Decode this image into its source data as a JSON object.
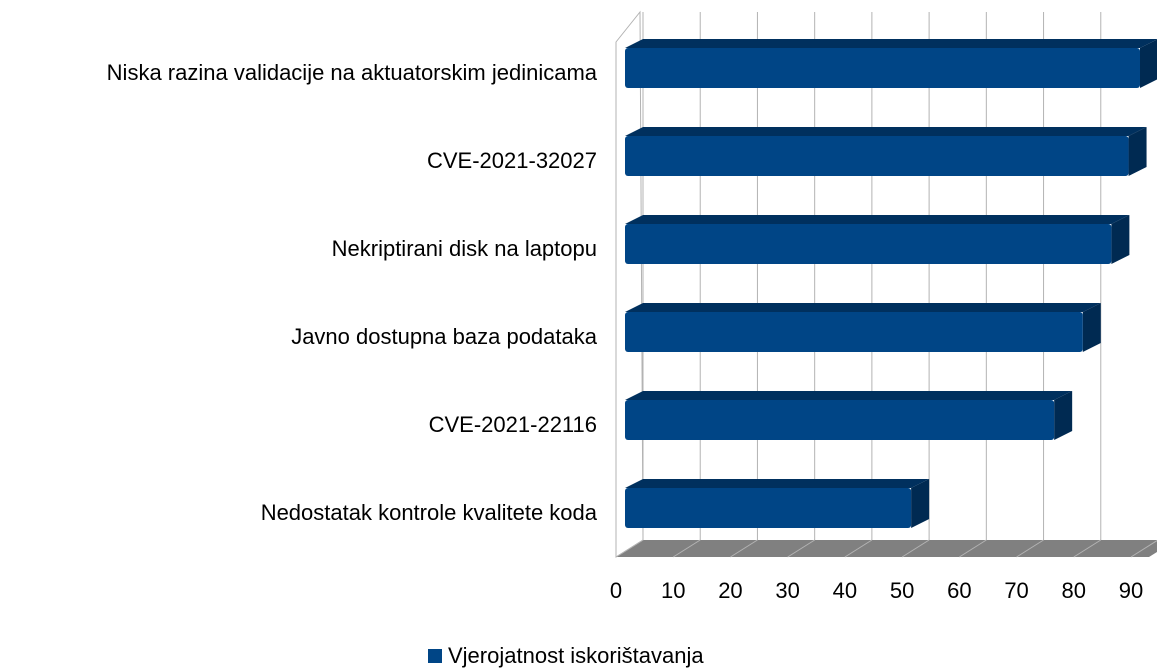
{
  "chart_data": {
    "type": "bar",
    "orientation": "horizontal",
    "categories": [
      "Niska razina validacije na aktuatorskim jedinicama",
      "CVE-2021-32027",
      "Nekriptirani disk na laptopu",
      "Javno dostupna baza podataka",
      "CVE-2021-22116",
      "Nedostatak kontrole kvalitete koda"
    ],
    "series": [
      {
        "name": "Vjerojatnost iskorištavanja",
        "color": "#004586",
        "values": [
          90,
          88,
          85,
          80,
          75,
          50
        ]
      }
    ],
    "xlim": [
      0,
      90
    ],
    "xticks": [
      0,
      10,
      20,
      30,
      40,
      50,
      60,
      70,
      80,
      90
    ],
    "grid": true,
    "legend": "bottom"
  }
}
